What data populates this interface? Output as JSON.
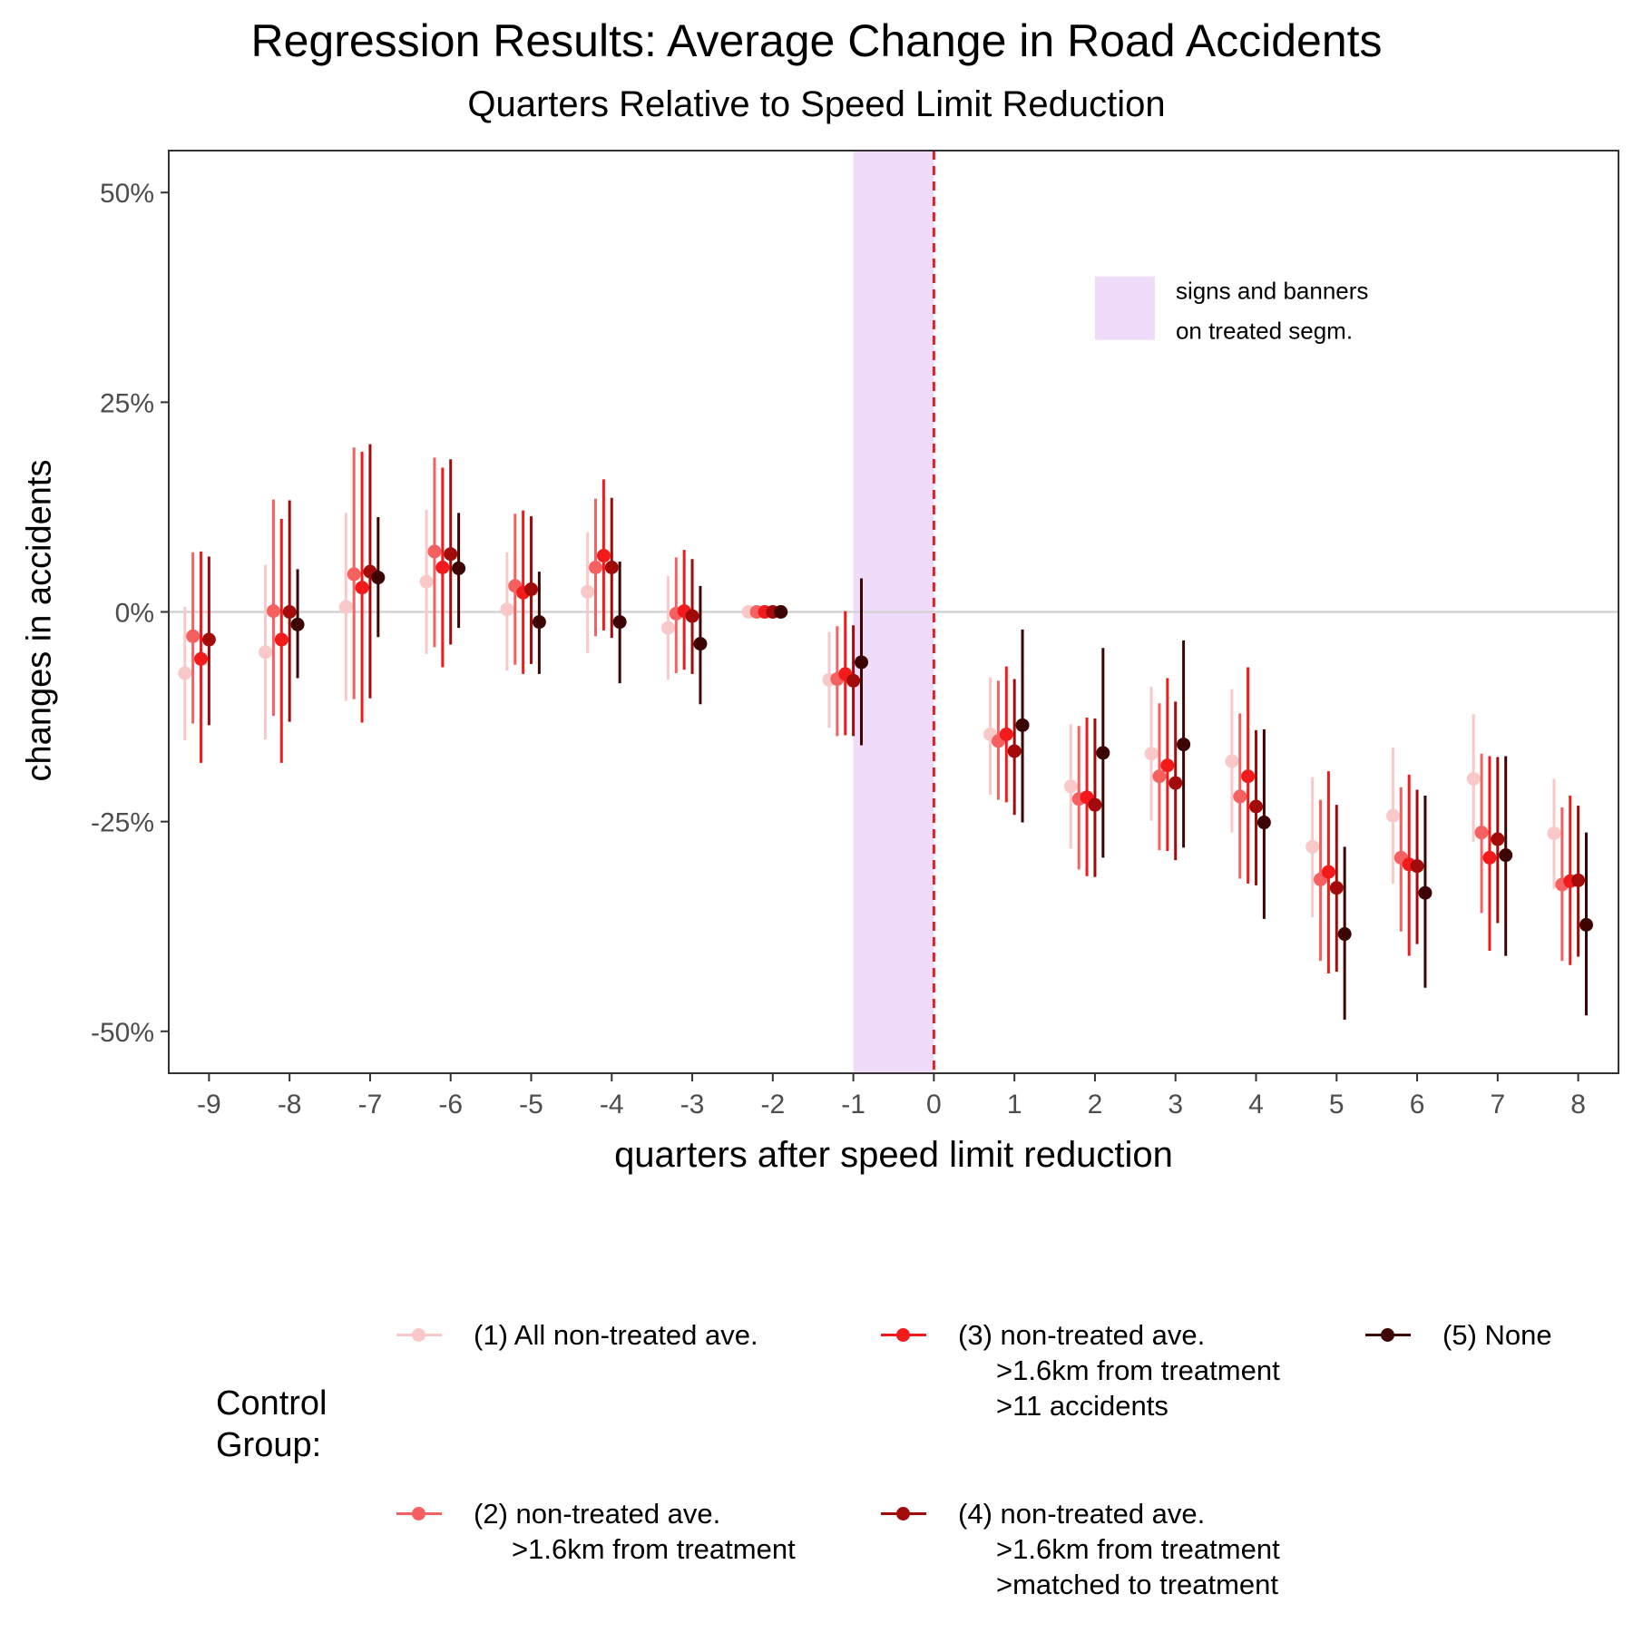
{
  "chart_data": {
    "type": "scatter",
    "subtype": "coefficient plot with confidence intervals",
    "title": "Regression Results: Average Change in Road Accidents",
    "subtitle": "Quarters Relative to Speed Limit Reduction",
    "xlabel": "quarters after speed limit reduction",
    "ylabel": "changes in accidents",
    "xlim": [
      -9.5,
      8.5
    ],
    "ylim": [
      -55,
      55
    ],
    "x_ticks": [
      -9,
      -8,
      -7,
      -6,
      -5,
      -4,
      -3,
      -2,
      -1,
      0,
      1,
      2,
      3,
      4,
      5,
      6,
      7,
      8
    ],
    "x_tick_labels": [
      "-9",
      "-8",
      "-7",
      "-6",
      "-5",
      "-4",
      "-3",
      "-2",
      "-1",
      "0",
      "1",
      "2",
      "3",
      "4",
      "5",
      "6",
      "7",
      "8"
    ],
    "y_ticks": [
      -50,
      -25,
      0,
      25,
      50
    ],
    "y_tick_labels": [
      "-50%",
      "-25%",
      "0%",
      "25%",
      "50%"
    ],
    "grid": false,
    "reference_line_y": 0,
    "vertical_dashed_line_x": 0,
    "shaded_band": {
      "x_range": [
        -1,
        0
      ],
      "label_lines": [
        "signs and banners",
        "on treated segm."
      ],
      "color": "#efdcfa"
    },
    "legend": {
      "title_lines": [
        "Control",
        "Group:"
      ],
      "placement": "bottom"
    },
    "x": [
      -9,
      -8,
      -7,
      -6,
      -5,
      -4,
      -3,
      -2,
      -1,
      1,
      2,
      3,
      4,
      5,
      6,
      7,
      8
    ],
    "series": [
      {
        "name_lines": [
          "(1) All non-treated ave."
        ],
        "color": "#f9c9c9",
        "estimate": [
          -7.3,
          -4.8,
          0.6,
          3.6,
          0.3,
          2.4,
          -1.9,
          0,
          -8.1,
          -14.6,
          -20.8,
          -16.9,
          -17.8,
          -28.0,
          -24.3,
          -19.9,
          -26.4
        ],
        "ci_low": [
          -15.3,
          -15.2,
          -10.6,
          -5.0,
          -7.0,
          -4.9,
          -8.1,
          0,
          -13.8,
          -21.8,
          -28.2,
          -24.9,
          -26.3,
          -36.4,
          -32.4,
          -27.4,
          -33.0
        ],
        "ci_high": [
          0.6,
          5.6,
          11.8,
          12.2,
          7.1,
          9.5,
          4.3,
          0,
          -2.4,
          -7.8,
          -13.4,
          -8.9,
          -9.2,
          -19.7,
          -16.2,
          -12.2,
          -19.9
        ]
      },
      {
        "name_lines": [
          "(2) non-treated ave.",
          ">1.6km from treatment"
        ],
        "color": "#f56060",
        "estimate": [
          -2.9,
          0.1,
          4.5,
          7.2,
          3.1,
          5.3,
          -0.2,
          0,
          -8.0,
          -15.4,
          -22.3,
          -19.6,
          -22.0,
          -31.9,
          -29.3,
          -26.3,
          -32.5
        ],
        "ci_low": [
          -13.3,
          -12.4,
          -10.4,
          -4.2,
          -6.3,
          -2.9,
          -7.3,
          0,
          -14.8,
          -22.4,
          -30.7,
          -28.4,
          -31.8,
          -41.6,
          -38.1,
          -35.9,
          -41.6
        ],
        "ci_high": [
          7.1,
          13.4,
          19.6,
          18.4,
          11.7,
          13.5,
          6.5,
          0,
          -1.7,
          -8.2,
          -13.6,
          -10.9,
          -12.1,
          -22.4,
          -20.9,
          -16.9,
          -23.3
        ]
      },
      {
        "name_lines": [
          "(3) non-treated ave.",
          ">1.6km from treatment",
          ">11 accidents"
        ],
        "color": "#f21a1a",
        "estimate": [
          -5.6,
          -3.3,
          2.9,
          5.3,
          2.3,
          6.7,
          0.1,
          0,
          -7.4,
          -14.6,
          -22.1,
          -18.3,
          -19.6,
          -31.0,
          -30.1,
          -29.3,
          -32.1
        ],
        "ci_low": [
          -18.0,
          -18.0,
          -13.2,
          -6.6,
          -7.4,
          -2.2,
          -6.9,
          0,
          -14.7,
          -22.7,
          -31.5,
          -28.5,
          -32.4,
          -43.1,
          -41.0,
          -40.4,
          -42.1
        ],
        "ci_high": [
          7.2,
          11.1,
          19.1,
          17.2,
          12.1,
          15.8,
          7.4,
          0,
          0.1,
          -6.5,
          -12.6,
          -7.9,
          -6.6,
          -19.0,
          -19.4,
          -17.2,
          -21.9
        ]
      },
      {
        "name_lines": [
          "(4) non-treated ave.",
          ">1.6km from treatment",
          ">matched to treatment"
        ],
        "color": "#a30b0b",
        "estimate": [
          -3.3,
          0.0,
          4.8,
          6.9,
          2.7,
          5.3,
          -0.5,
          0,
          -8.2,
          -16.6,
          -23.0,
          -20.4,
          -23.2,
          -32.9,
          -30.3,
          -27.1,
          -32.0
        ],
        "ci_low": [
          -13.5,
          -13.1,
          -10.3,
          -3.9,
          -6.2,
          -3.1,
          -7.4,
          0,
          -14.8,
          -24.2,
          -31.6,
          -29.6,
          -32.6,
          -42.9,
          -39.6,
          -37.1,
          -41.1
        ],
        "ci_high": [
          6.6,
          13.3,
          20.0,
          18.2,
          11.4,
          13.6,
          6.3,
          0,
          -1.6,
          -8.0,
          -12.7,
          -10.7,
          -14.1,
          -23.0,
          -21.2,
          -17.3,
          -23.1
        ]
      },
      {
        "name_lines": [
          "(5) None"
        ],
        "color": "#3d0404",
        "estimate": [
          null,
          -1.5,
          4.1,
          5.2,
          -1.2,
          -1.2,
          -3.8,
          0,
          -6.0,
          -13.5,
          -16.8,
          -15.8,
          -25.1,
          -38.4,
          -33.5,
          -29.0,
          -37.3
        ],
        "ci_low": [
          null,
          -7.9,
          -3.0,
          -1.9,
          -7.4,
          -8.5,
          -11.0,
          0,
          -15.9,
          -25.1,
          -29.3,
          -28.1,
          -36.6,
          -48.6,
          -44.8,
          -41.0,
          -48.1
        ],
        "ci_high": [
          null,
          5.1,
          11.3,
          11.8,
          4.8,
          6.0,
          3.1,
          0,
          4.0,
          -2.1,
          -4.3,
          -3.4,
          -14.0,
          -28.0,
          -21.9,
          -17.2,
          -26.3
        ]
      }
    ]
  }
}
